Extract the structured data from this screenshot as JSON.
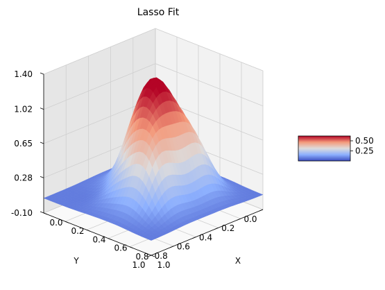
{
  "chart_data": {
    "type": "surface3d",
    "title": "Lasso Fit",
    "xlabel": "X",
    "ylabel": "Y",
    "zlabel": "",
    "x_ticks": [
      "0.0",
      "0.2",
      "0.4",
      "0.6",
      "0.8",
      "1.0"
    ],
    "y_ticks": [
      "0.0",
      "0.2",
      "0.4",
      "0.6",
      "0.8",
      "1.0"
    ],
    "z_ticks": [
      "-0.10",
      "0.28",
      "0.65",
      "1.02",
      "1.40"
    ],
    "xlim": [
      0,
      1
    ],
    "ylim": [
      0,
      1
    ],
    "zlim": [
      -0.1,
      1.4
    ],
    "colormap": "coolwarm",
    "colorbar": {
      "ticks": [
        "0.25",
        "0.50"
      ],
      "range": [
        0.0,
        0.62
      ]
    },
    "grid": true,
    "surface_features": [
      {
        "kind": "peak",
        "x": 0.5,
        "y": 0.5,
        "z": 1.3
      },
      {
        "kind": "dip",
        "x": 0.3,
        "y": 0.7,
        "z": -0.05
      },
      {
        "kind": "bump",
        "x": 0.3,
        "y": 0.3,
        "z": 0.45
      },
      {
        "kind": "bump",
        "x": 0.7,
        "y": 0.7,
        "z": 0.45
      },
      {
        "kind": "bump",
        "x": 0.7,
        "y": 0.3,
        "z": 0.4
      }
    ]
  }
}
